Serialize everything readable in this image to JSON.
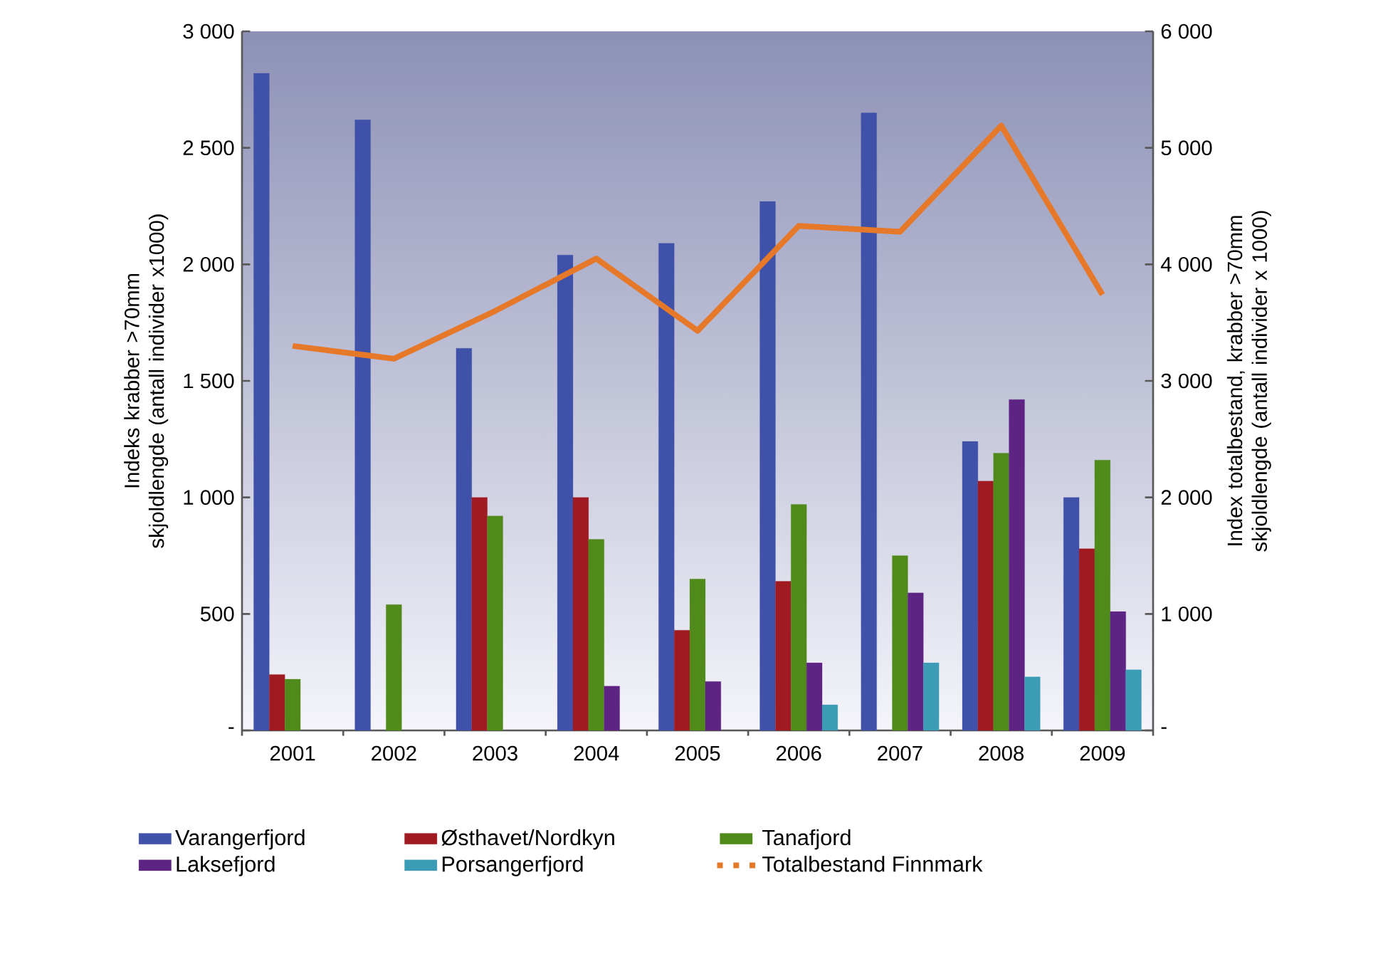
{
  "chart_data": {
    "type": "bar",
    "ylabel": "Indeks krabber >70mm skjoldlengde (antall individer x1000)",
    "y2label": "Index totalbestand, krabber >70mm skjoldlengde (antall individer x 1000)",
    "categories": [
      "2001",
      "2002",
      "2003",
      "2004",
      "2005",
      "2006",
      "2007",
      "2008",
      "2009"
    ],
    "series": [
      {
        "name": "Varangerfjord",
        "type": "bar",
        "color": "#3f51a8",
        "values": [
          2820,
          2620,
          1640,
          2040,
          2090,
          2270,
          2650,
          1240,
          1000
        ]
      },
      {
        "name": "Østhavet/Nordkyn",
        "type": "bar",
        "color": "#a01a22",
        "values": [
          240,
          null,
          1000,
          1000,
          430,
          640,
          null,
          1070,
          780
        ]
      },
      {
        "name": "Tanafjord",
        "type": "bar",
        "color": "#4f8a1a",
        "values": [
          220,
          540,
          920,
          820,
          650,
          970,
          750,
          1190,
          1160
        ]
      },
      {
        "name": "Laksefjord",
        "type": "bar",
        "color": "#5e2484",
        "values": [
          null,
          null,
          null,
          190,
          210,
          290,
          590,
          1420,
          510
        ]
      },
      {
        "name": "Porsangerfjord",
        "type": "bar",
        "color": "#3c9bb5",
        "values": [
          null,
          null,
          null,
          null,
          null,
          110,
          290,
          230,
          260
        ]
      },
      {
        "name": "Totalbestand Finnmark",
        "type": "line",
        "axis": "y2",
        "color": "#e6782a",
        "values": [
          3300,
          3190,
          3600,
          4050,
          3430,
          4330,
          4280,
          5190,
          3740
        ]
      }
    ],
    "ylim": [
      0,
      3000
    ],
    "yticks": [
      {
        "value": 0,
        "label": "-"
      },
      500,
      {
        "value": 1000,
        "label": "1 000"
      },
      {
        "value": 1500,
        "label": "1 500"
      },
      {
        "value": 2000,
        "label": "2 000"
      },
      {
        "value": 2500,
        "label": "2 500"
      },
      {
        "value": 3000,
        "label": "3 000"
      }
    ],
    "y2lim": [
      0,
      6000
    ],
    "y2ticks": [
      {
        "value": 0,
        "label": "-"
      },
      {
        "value": 1000,
        "label": "1 000"
      },
      {
        "value": 2000,
        "label": "2 000"
      },
      {
        "value": 3000,
        "label": "3 000"
      },
      {
        "value": 4000,
        "label": "4 000"
      },
      {
        "value": 5000,
        "label": "5 000"
      },
      {
        "value": 6000,
        "label": "6 000"
      }
    ],
    "grid": false,
    "legend": "bottom"
  }
}
